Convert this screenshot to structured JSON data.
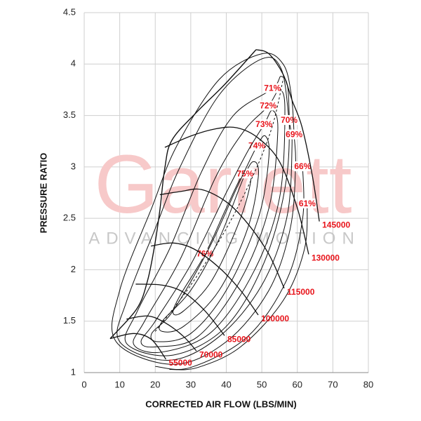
{
  "chart_data": {
    "type": "compressor_map",
    "xlabel": "CORRECTED AIR FLOW (LBS/MIN)",
    "ylabel": "PRESSURE RATIO",
    "watermark": {
      "title": "Garrett",
      "subtitle": "ADVANCING MOTION"
    },
    "xlim": [
      0,
      80
    ],
    "ylim": [
      1,
      4.5
    ],
    "xticks": [
      0,
      10,
      20,
      30,
      40,
      50,
      60,
      70,
      80
    ],
    "yticks": [
      1,
      1.5,
      2,
      2.5,
      3,
      3.5,
      4,
      4.5
    ],
    "grid": true,
    "line_color": "#111111",
    "label_color": "#e8141b",
    "surge_line": {
      "x": [
        7.3,
        14.8,
        17.8,
        19.8,
        21.3,
        22.7,
        24.7,
        31.6,
        39.5,
        48.4
      ],
      "y": [
        1.33,
        1.62,
        1.89,
        2.23,
        2.58,
        2.99,
        3.26,
        3.53,
        3.8,
        4.14
      ]
    },
    "centerline": {
      "x": [
        20,
        30,
        40,
        48,
        53,
        56
      ],
      "y": [
        1.4,
        1.85,
        2.4,
        2.95,
        3.4,
        3.85
      ]
    },
    "speed_lines": [
      {
        "label": "55000",
        "x": [
          7.3,
          14,
          19,
          23
        ],
        "y": [
          1.33,
          1.38,
          1.32,
          1.13
        ]
      },
      {
        "label": "70000",
        "x": [
          11.9,
          18,
          23,
          28,
          31.6
        ],
        "y": [
          1.52,
          1.55,
          1.48,
          1.35,
          1.21
        ]
      },
      {
        "label": "85000",
        "x": [
          14.5,
          22,
          28,
          34,
          39.5
        ],
        "y": [
          1.86,
          1.85,
          1.78,
          1.6,
          1.36
        ]
      },
      {
        "label": "100000",
        "x": [
          18.8,
          25,
          31,
          38,
          44,
          49
        ],
        "y": [
          2.23,
          2.26,
          2.2,
          2.02,
          1.8,
          1.56
        ]
      },
      {
        "label": "115000",
        "x": [
          21.3,
          27,
          33,
          40,
          46,
          52,
          56.3
        ],
        "y": [
          2.73,
          2.76,
          2.78,
          2.66,
          2.45,
          2.15,
          1.82
        ]
      },
      {
        "label": "130000",
        "x": [
          22.7,
          30,
          37,
          43,
          49,
          55,
          60,
          63.2
        ],
        "y": [
          3.19,
          3.3,
          3.37,
          3.38,
          3.28,
          3.05,
          2.6,
          2.15
        ]
      },
      {
        "label": "145000",
        "x": [
          48.4,
          52,
          56,
          58.5,
          61.3,
          64.2,
          66.2
        ],
        "y": [
          4.14,
          4.1,
          3.9,
          3.65,
          3.39,
          2.92,
          2.47
        ]
      }
    ],
    "efficiency_islands": [
      {
        "label": "76%",
        "closed": true,
        "x": [
          34,
          40,
          45,
          47,
          44,
          36,
          28,
          25,
          27
        ],
        "y": [
          2.15,
          2.6,
          2.95,
          2.9,
          2.5,
          1.9,
          1.6,
          1.58,
          1.75
        ]
      },
      {
        "label": "75%",
        "closed": true,
        "x": [
          45.3,
          48,
          49,
          46,
          38,
          28,
          22,
          22,
          30,
          38
        ],
        "y": [
          2.93,
          3.05,
          2.9,
          2.4,
          1.8,
          1.45,
          1.4,
          1.5,
          1.8,
          2.3
        ]
      },
      {
        "label": "74%",
        "closed": true,
        "x": [
          48.6,
          51,
          52,
          49,
          40,
          30,
          21,
          19,
          25,
          35,
          43
        ],
        "y": [
          3.2,
          3.3,
          3.1,
          2.5,
          1.8,
          1.38,
          1.3,
          1.38,
          1.6,
          2.2,
          2.8
        ]
      },
      {
        "label": "73%",
        "closed": true,
        "x": [
          50.6,
          53,
          54.5,
          52,
          44,
          32,
          20,
          16,
          20,
          30,
          40,
          46
        ],
        "y": [
          3.41,
          3.55,
          3.35,
          2.6,
          1.9,
          1.35,
          1.25,
          1.3,
          1.5,
          2.05,
          2.75,
          3.15
        ]
      },
      {
        "label": "72%",
        "closed": true,
        "x": [
          51.8,
          55,
          56.5,
          55,
          48,
          36,
          22,
          14,
          17,
          27,
          37,
          45
        ],
        "y": [
          3.59,
          3.75,
          3.55,
          2.7,
          2.0,
          1.4,
          1.2,
          1.27,
          1.5,
          2.1,
          2.9,
          3.35
        ]
      },
      {
        "label": "71%",
        "closed": true,
        "x": [
          53,
          55.5,
          57.5,
          57,
          51,
          40,
          25,
          12,
          15,
          24,
          33,
          42
        ],
        "y": [
          3.76,
          3.88,
          3.7,
          2.9,
          2.1,
          1.45,
          1.17,
          1.28,
          1.6,
          2.2,
          2.95,
          3.5
        ]
      },
      {
        "label": "70%",
        "closed": true,
        "x": [
          57.7,
          58.5,
          57,
          50,
          38,
          24,
          10,
          12,
          20,
          27,
          38,
          50,
          55.5
        ],
        "y": [
          3.45,
          3.2,
          2.5,
          1.85,
          1.35,
          1.12,
          1.3,
          1.7,
          2.4,
          3.0,
          3.7,
          4.05,
          3.95
        ]
      },
      {
        "label": "69%",
        "closed": true,
        "x": [
          59.1,
          59.5,
          58,
          52,
          40,
          25,
          9,
          10,
          19,
          26,
          38,
          50,
          56,
          58.3
        ],
        "y": [
          3.31,
          3.0,
          2.4,
          1.8,
          1.3,
          1.08,
          1.3,
          1.8,
          2.6,
          3.2,
          3.85,
          4.1,
          4.0,
          3.7
        ]
      },
      {
        "label": "66%",
        "closed": false,
        "x": [
          61.5,
          61.5,
          57,
          46,
          30,
          20
        ],
        "y": [
          3.0,
          2.5,
          1.9,
          1.35,
          1.05,
          1.06
        ]
      },
      {
        "label": "61%",
        "closed": false,
        "x": [
          62.8,
          62,
          56,
          44,
          32,
          24
        ],
        "y": [
          2.64,
          2.2,
          1.7,
          1.25,
          1.05,
          1.03
        ]
      }
    ]
  }
}
